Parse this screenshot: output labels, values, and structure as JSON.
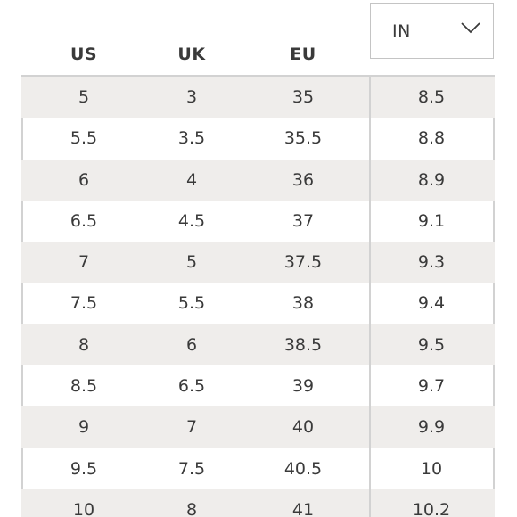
{
  "unit_selector": {
    "selected": "IN",
    "icon": "chevron-down-icon"
  },
  "columns": {
    "us": "US",
    "uk": "UK",
    "eu": "EU"
  },
  "rows": [
    {
      "us": "5",
      "uk": "3",
      "eu": "35",
      "in": "8.5"
    },
    {
      "us": "5.5",
      "uk": "3.5",
      "eu": "35.5",
      "in": "8.8"
    },
    {
      "us": "6",
      "uk": "4",
      "eu": "36",
      "in": "8.9"
    },
    {
      "us": "6.5",
      "uk": "4.5",
      "eu": "37",
      "in": "9.1"
    },
    {
      "us": "7",
      "uk": "5",
      "eu": "37.5",
      "in": "9.3"
    },
    {
      "us": "7.5",
      "uk": "5.5",
      "eu": "38",
      "in": "9.4"
    },
    {
      "us": "8",
      "uk": "6",
      "eu": "38.5",
      "in": "9.5"
    },
    {
      "us": "8.5",
      "uk": "6.5",
      "eu": "39",
      "in": "9.7"
    },
    {
      "us": "9",
      "uk": "7",
      "eu": "40",
      "in": "9.9"
    },
    {
      "us": "9.5",
      "uk": "7.5",
      "eu": "40.5",
      "in": "10"
    },
    {
      "us": "10",
      "uk": "8",
      "eu": "41",
      "in": "10.2"
    }
  ],
  "colors": {
    "row_shade": "#efedeb",
    "border": "#d2d2d2",
    "text": "#3a3a3a"
  }
}
